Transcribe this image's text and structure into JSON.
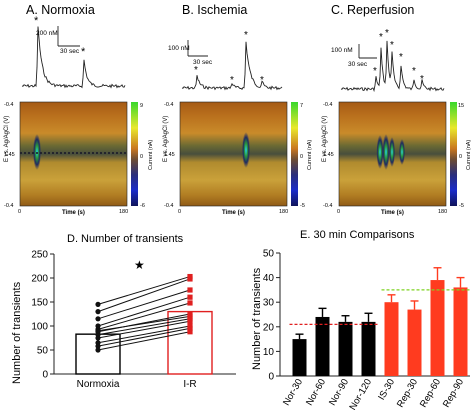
{
  "panels": {
    "a": {
      "title": "A. Normoxia"
    },
    "b": {
      "title": "B. Ischemia"
    },
    "c": {
      "title": "C. Reperfusion"
    },
    "d": {
      "title": "D. Number of transients"
    },
    "e": {
      "title": "E. 30 min Comparisons"
    }
  },
  "trace_scales": {
    "a": {
      "conc": "200 nM",
      "time": "30 sec"
    },
    "b": {
      "conc": "100 nM",
      "time": "30 sec"
    },
    "c": {
      "conc": "100 nM",
      "time": "30 sec"
    }
  },
  "colorplot": {
    "ylabel": "E vs. Ag/AgCl (V)",
    "y_ticks": [
      "-0.4",
      "1.45",
      "-0.4"
    ],
    "xlabel": "Time (s)",
    "x_ticks": [
      "0",
      "180"
    ],
    "colorbar_label": "Current (nA)",
    "colorbars": {
      "a": [
        "9",
        "0",
        "-6"
      ],
      "b": [
        "7",
        "0",
        "-5"
      ],
      "c": [
        "15",
        "0",
        "-5"
      ]
    }
  },
  "star_markers": {
    "symbol": "*",
    "panel_d": "★"
  },
  "chart_data": [
    {
      "type": "bar",
      "panel": "D",
      "title": "D. Number of transients",
      "ylabel": "Number of transients",
      "categories": [
        "Normoxia",
        "I-R"
      ],
      "values": [
        83,
        130
      ],
      "bar_colors": [
        "#000000",
        "#e02020"
      ],
      "ylim": [
        0,
        250
      ],
      "yticks": [
        0,
        50,
        100,
        150,
        200,
        250
      ],
      "paired_points": [
        [
          145,
          203
        ],
        [
          130,
          198
        ],
        [
          115,
          175
        ],
        [
          100,
          160
        ],
        [
          93,
          148
        ],
        [
          88,
          125
        ],
        [
          82,
          115
        ],
        [
          75,
          110
        ],
        [
          65,
          100
        ],
        [
          58,
          95
        ],
        [
          50,
          88
        ],
        [
          90,
          120
        ]
      ],
      "significance": "★"
    },
    {
      "type": "bar",
      "panel": "E",
      "title": "E. 30 min Comparisons",
      "ylabel": "Number of transients",
      "categories": [
        "Nor-30",
        "Nor-60",
        "Nor-90",
        "Nor-120",
        "IS-30",
        "Rep-30",
        "Rep-60",
        "Rep-90"
      ],
      "values": [
        15,
        24,
        22,
        22,
        30,
        27,
        39,
        36
      ],
      "errors": [
        2,
        3.5,
        2.5,
        3.5,
        3,
        3.5,
        5,
        4
      ],
      "bar_colors": [
        "#000000",
        "#000000",
        "#000000",
        "#000000",
        "#ff3b1f",
        "#ff3b1f",
        "#ff3b1f",
        "#ff3b1f"
      ],
      "ylim": [
        0,
        50
      ],
      "yticks": [
        0,
        10,
        20,
        30,
        40,
        50
      ],
      "reference_lines": [
        {
          "value": 21,
          "color": "#e02020",
          "style": "dashed",
          "span": "Nor-30 to Nor-120"
        },
        {
          "value": 35,
          "color": "#7fd321",
          "style": "dashed",
          "span": "IS-30 to Rep-90"
        }
      ]
    }
  ]
}
